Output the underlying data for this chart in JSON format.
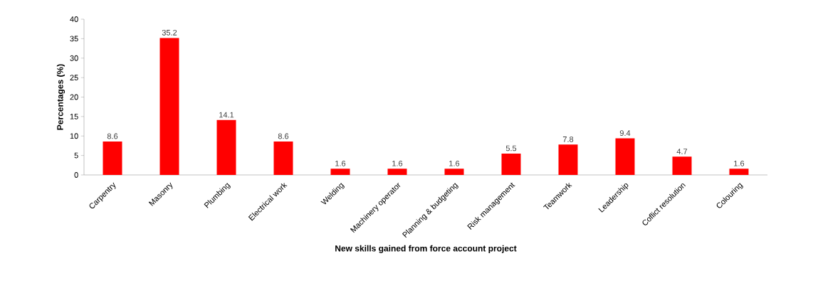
{
  "chart_data": {
    "type": "bar",
    "xlabel": "New skills gained from force account project",
    "ylabel": "Percentages (%)",
    "categories": [
      "Carpentry",
      "Masonry",
      "Plumbing",
      "Electrical work",
      "Welding",
      "Machinery operator",
      "Planning & budgeting",
      "Risk management",
      "Teamwork",
      "Leadership",
      "Coflict resolution",
      "Colouring"
    ],
    "values": [
      8.6,
      35.2,
      14.1,
      8.6,
      1.6,
      1.6,
      1.6,
      5.5,
      7.8,
      9.4,
      4.7,
      1.6
    ],
    "color": "#ff0000",
    "ylim": [
      0,
      40
    ],
    "yticks": [
      0,
      5,
      10,
      15,
      20,
      25,
      30,
      35,
      40
    ],
    "data_labels": true
  }
}
